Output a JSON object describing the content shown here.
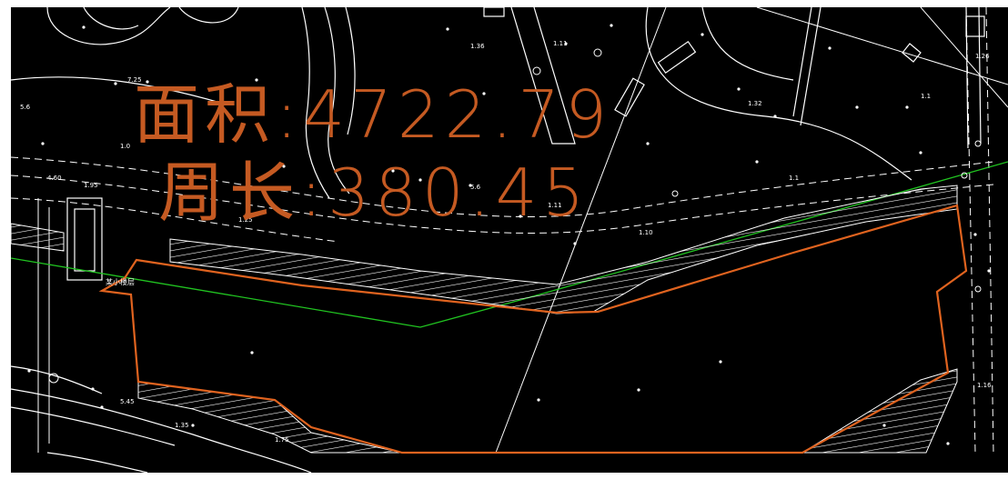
{
  "map": {
    "background": "#000000",
    "parcel_color": "#e0631f",
    "label_color": "#c55a22",
    "linework_color": "#ffffff",
    "line_green": "#21c421"
  },
  "labels": {
    "area": "面积:4722.79",
    "perimeter": "周长:380.45"
  },
  "annotations": {
    "building_tag": "某小楼层"
  }
}
